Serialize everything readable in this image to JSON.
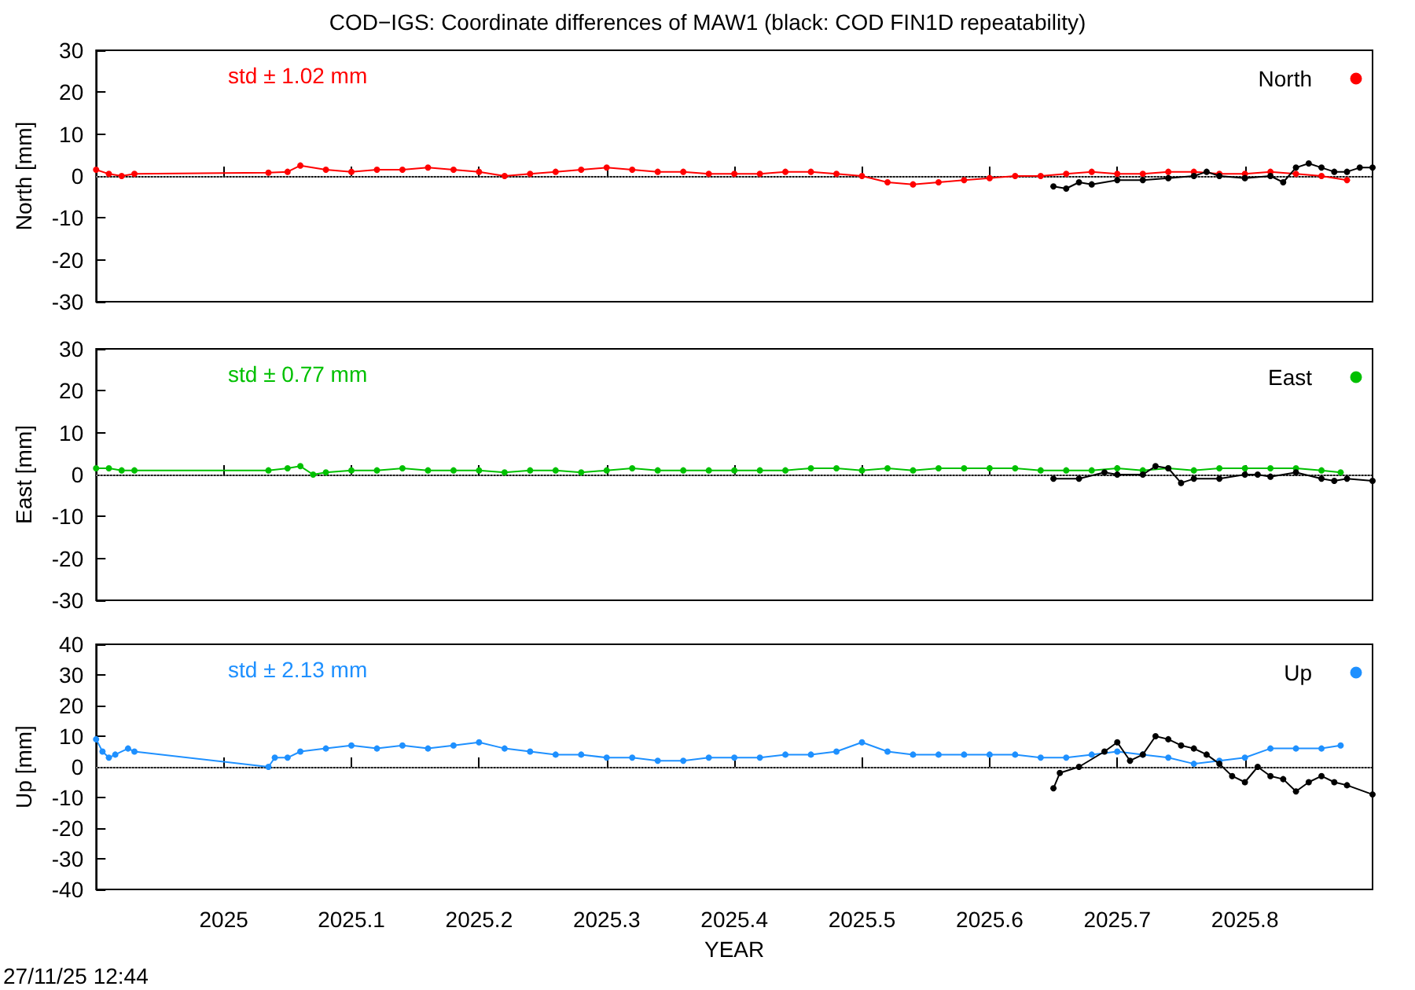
{
  "chart_data": [
    {
      "type": "line",
      "title": "COD−IGS: Coordinate differences of MAW1 (black: COD FIN1D repeatability)",
      "ylabel": "North [mm]",
      "annotations": [
        "std ± 1.02 mm"
      ],
      "xlim": [
        2024.9,
        2025.9
      ],
      "xticks": [
        2025,
        2025.1,
        2025.2,
        2025.3,
        2025.4,
        2025.5,
        2025.6,
        2025.7,
        2025.8
      ],
      "ylim": [
        -30,
        30
      ],
      "yticks": [
        -30,
        -20,
        -10,
        0,
        10,
        20,
        30
      ],
      "tick_labels": "y",
      "grid": false,
      "legend": "top right",
      "marker": "circle",
      "line_style": "solid",
      "ref_lines": [
        {
          "axis": "y",
          "value": 0,
          "line_style": "dotted",
          "color": "#888888"
        }
      ],
      "series": [
        {
          "color": "#000000",
          "x": [
            2025.65,
            2025.66,
            2025.67,
            2025.68,
            2025.7,
            2025.72,
            2025.74,
            2025.76,
            2025.77,
            2025.78,
            2025.8,
            2025.82,
            2025.83,
            2025.84,
            2025.85,
            2025.86,
            2025.87,
            2025.88,
            2025.89,
            2025.9
          ],
          "values": [
            -2.5,
            -3,
            -1.5,
            -2,
            -1,
            -1,
            -0.5,
            0,
            1,
            0,
            -0.5,
            0,
            -1.5,
            2,
            3,
            2,
            1,
            1,
            2,
            2
          ]
        },
        {
          "name": "North",
          "color": "#ff0000",
          "x": [
            2024.9,
            2024.91,
            2024.92,
            2024.93,
            2025.035,
            2025.05,
            2025.06,
            2025.08,
            2025.1,
            2025.12,
            2025.14,
            2025.16,
            2025.18,
            2025.2,
            2025.22,
            2025.24,
            2025.26,
            2025.28,
            2025.3,
            2025.32,
            2025.34,
            2025.36,
            2025.38,
            2025.4,
            2025.42,
            2025.44,
            2025.46,
            2025.48,
            2025.5,
            2025.52,
            2025.54,
            2025.56,
            2025.58,
            2025.6,
            2025.62,
            2025.64,
            2025.66,
            2025.68,
            2025.7,
            2025.72,
            2025.74,
            2025.76,
            2025.78,
            2025.8,
            2025.82,
            2025.84,
            2025.86,
            2025.88
          ],
          "values": [
            1.5,
            0.5,
            0,
            0.5,
            0.8,
            1,
            2.5,
            1.5,
            1,
            1.5,
            1.5,
            2,
            1.5,
            1,
            0,
            0.5,
            1,
            1.5,
            2,
            1.5,
            1,
            1,
            0.5,
            0.5,
            0.5,
            1,
            1,
            0.5,
            0,
            -1.5,
            -2,
            -1.5,
            -1,
            -0.5,
            0,
            0,
            0.5,
            1,
            0.5,
            0.5,
            1,
            1,
            0.5,
            0.5,
            1,
            0.5,
            0,
            -1
          ]
        }
      ]
    },
    {
      "type": "line",
      "ylabel": "East [mm]",
      "annotations": [
        "std ± 0.77 mm"
      ],
      "xlim": [
        2024.9,
        2025.9
      ],
      "xticks": [
        2025,
        2025.1,
        2025.2,
        2025.3,
        2025.4,
        2025.5,
        2025.6,
        2025.7,
        2025.8
      ],
      "ylim": [
        -30,
        30
      ],
      "yticks": [
        -30,
        -20,
        -10,
        0,
        10,
        20,
        30
      ],
      "tick_labels": "y",
      "grid": false,
      "legend": "top right",
      "marker": "circle",
      "line_style": "solid",
      "ref_lines": [
        {
          "axis": "y",
          "value": 0,
          "line_style": "dotted",
          "color": "#888888"
        }
      ],
      "series": [
        {
          "color": "#000000",
          "x": [
            2025.65,
            2025.67,
            2025.69,
            2025.7,
            2025.72,
            2025.73,
            2025.74,
            2025.75,
            2025.76,
            2025.78,
            2025.8,
            2025.81,
            2025.82,
            2025.84,
            2025.86,
            2025.87,
            2025.88,
            2025.9
          ],
          "values": [
            -1,
            -1,
            0.5,
            0,
            0,
            2,
            1.5,
            -2,
            -1,
            -1,
            0,
            0,
            -0.5,
            0.5,
            -1,
            -1.5,
            -1,
            -1.5
          ]
        },
        {
          "name": "East",
          "color": "#00c000",
          "x": [
            2024.9,
            2024.91,
            2024.92,
            2024.93,
            2025.035,
            2025.05,
            2025.06,
            2025.07,
            2025.08,
            2025.1,
            2025.12,
            2025.14,
            2025.16,
            2025.18,
            2025.2,
            2025.22,
            2025.24,
            2025.26,
            2025.28,
            2025.3,
            2025.32,
            2025.34,
            2025.36,
            2025.38,
            2025.4,
            2025.42,
            2025.44,
            2025.46,
            2025.48,
            2025.5,
            2025.52,
            2025.54,
            2025.56,
            2025.58,
            2025.6,
            2025.62,
            2025.64,
            2025.66,
            2025.68,
            2025.7,
            2025.72,
            2025.74,
            2025.76,
            2025.78,
            2025.8,
            2025.82,
            2025.84,
            2025.86,
            2025.875
          ],
          "values": [
            1.5,
            1.5,
            1,
            1,
            1,
            1.5,
            2,
            0,
            0.5,
            1,
            1,
            1.5,
            1,
            1,
            1,
            0.5,
            1,
            1,
            0.5,
            1,
            1.5,
            1,
            1,
            1,
            1,
            1,
            1,
            1.5,
            1.5,
            1,
            1.5,
            1,
            1.5,
            1.5,
            1.5,
            1.5,
            1,
            1,
            1,
            1.5,
            1,
            1.5,
            1,
            1.5,
            1.5,
            1.5,
            1.5,
            1,
            0.5
          ]
        }
      ]
    },
    {
      "type": "line",
      "ylabel": "Up [mm]",
      "xlabel": "YEAR",
      "annotations": [
        "std ± 2.13 mm",
        "27/11/25 12:44"
      ],
      "xlim": [
        2024.9,
        2025.9
      ],
      "xticks": [
        2025,
        2025.1,
        2025.2,
        2025.3,
        2025.4,
        2025.5,
        2025.6,
        2025.7,
        2025.8
      ],
      "ylim": [
        -40,
        40
      ],
      "yticks": [
        -40,
        -30,
        -20,
        -10,
        0,
        10,
        20,
        30,
        40
      ],
      "grid": false,
      "legend": "top right",
      "marker": "circle",
      "line_style": "solid",
      "ref_lines": [
        {
          "axis": "y",
          "value": 0,
          "line_style": "dotted",
          "color": "#888888"
        }
      ],
      "series": [
        {
          "color": "#000000",
          "x": [
            2025.65,
            2025.655,
            2025.67,
            2025.69,
            2025.7,
            2025.71,
            2025.72,
            2025.73,
            2025.74,
            2025.75,
            2025.76,
            2025.77,
            2025.78,
            2025.79,
            2025.8,
            2025.81,
            2025.82,
            2025.83,
            2025.84,
            2025.85,
            2025.86,
            2025.87,
            2025.88,
            2025.9
          ],
          "values": [
            -7,
            -2,
            0,
            5,
            8,
            2,
            4,
            10,
            9,
            7,
            6,
            4,
            1,
            -3,
            -5,
            0,
            -3,
            -4,
            -8,
            -5,
            -3,
            -5,
            -6,
            -9
          ]
        },
        {
          "name": "Up",
          "color": "#1e90ff",
          "x": [
            2024.9,
            2024.905,
            2024.91,
            2024.915,
            2024.925,
            2024.93,
            2025.035,
            2025.04,
            2025.05,
            2025.06,
            2025.08,
            2025.1,
            2025.12,
            2025.14,
            2025.16,
            2025.18,
            2025.2,
            2025.22,
            2025.24,
            2025.26,
            2025.28,
            2025.3,
            2025.32,
            2025.34,
            2025.36,
            2025.38,
            2025.4,
            2025.42,
            2025.44,
            2025.46,
            2025.48,
            2025.5,
            2025.52,
            2025.54,
            2025.56,
            2025.58,
            2025.6,
            2025.62,
            2025.64,
            2025.66,
            2025.68,
            2025.7,
            2025.72,
            2025.74,
            2025.76,
            2025.78,
            2025.8,
            2025.82,
            2025.84,
            2025.86,
            2025.875
          ],
          "values": [
            9,
            5,
            3,
            4,
            6,
            5,
            0,
            3,
            3,
            5,
            6,
            7,
            6,
            7,
            6,
            7,
            8,
            6,
            5,
            4,
            4,
            3,
            3,
            2,
            2,
            3,
            3,
            3,
            4,
            4,
            5,
            8,
            5,
            4,
            4,
            4,
            4,
            4,
            3,
            3,
            4,
            5,
            4,
            3,
            1,
            2,
            3,
            6,
            6,
            6,
            7
          ]
        }
      ]
    }
  ]
}
